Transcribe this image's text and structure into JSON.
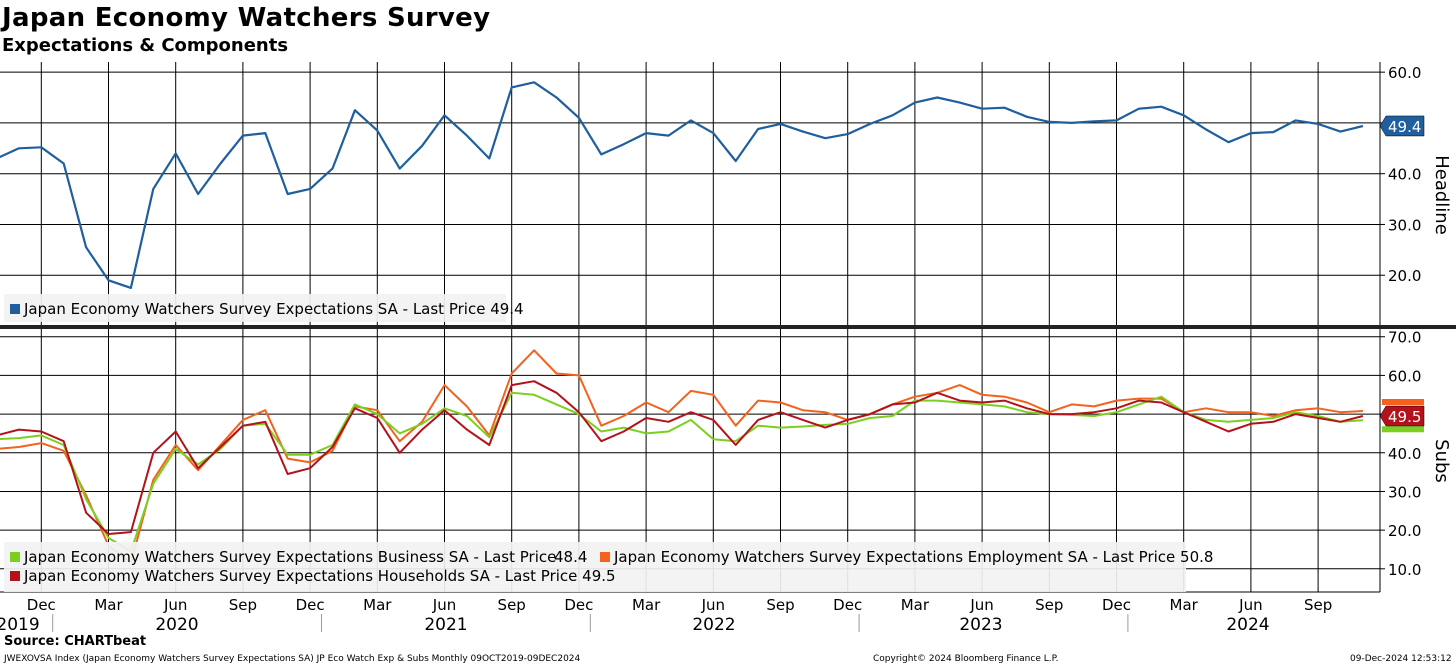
{
  "chart_data": [
    {
      "type": "line",
      "title": "Japan Economy Watchers Survey",
      "subtitle": "Expectations & Components",
      "panel_label": "Headline",
      "ylim": [
        10,
        62
      ],
      "yticks": [
        20,
        30,
        40,
        50,
        60
      ],
      "ytick_labels": [
        "20.0",
        "30.0",
        "40.0",
        "50.0",
        "60.0"
      ],
      "series": [
        {
          "name": "Japan Economy Watchers Survey Expectations SA - Last Price 49.4",
          "color": "#1f5f9e",
          "last_value_label": "49.4",
          "values": [
            43.0,
            45.0,
            45.2,
            42.0,
            25.5,
            19.0,
            17.5,
            37.0,
            44.0,
            36.0,
            42.0,
            47.5,
            48.0,
            36.0,
            37.0,
            41.0,
            52.5,
            48.5,
            41.0,
            45.5,
            51.5,
            47.5,
            43.0,
            57.0,
            58.0,
            55.0,
            51.0,
            43.8,
            45.8,
            48.0,
            47.5,
            50.5,
            48.0,
            42.5,
            48.8,
            49.8,
            48.3,
            47.0,
            47.8,
            49.8,
            51.5,
            54.0,
            55.0,
            54.0,
            52.8,
            53.0,
            51.2,
            50.2,
            50.0,
            50.3,
            50.5,
            52.8,
            53.2,
            51.5,
            48.7,
            46.2,
            48.0,
            48.2,
            50.5,
            49.8,
            48.3,
            49.4
          ]
        }
      ]
    },
    {
      "type": "line",
      "panel_label": "Subs",
      "ylim": [
        4,
        72
      ],
      "yticks": [
        10,
        20,
        30,
        40,
        50,
        60,
        70
      ],
      "ytick_labels": [
        "10.0",
        "20.0",
        "30.0",
        "40.0",
        "50.0",
        "60.0",
        "70.0"
      ],
      "series": [
        {
          "name": "Japan Economy Watchers Survey Expectations Business SA - Last Price",
          "last_price": "48.4",
          "color": "#7ccf1f",
          "values": [
            43.5,
            43.8,
            44.5,
            42.0,
            28.0,
            18.0,
            14.5,
            32.0,
            41.0,
            37.0,
            41.0,
            47.0,
            47.5,
            39.5,
            39.5,
            42.0,
            52.5,
            50.0,
            45.0,
            47.5,
            51.5,
            49.5,
            44.0,
            55.5,
            55.0,
            52.5,
            50.0,
            45.5,
            46.5,
            45.0,
            45.5,
            48.5,
            43.5,
            43.0,
            47.0,
            46.5,
            46.8,
            47.2,
            47.5,
            49.0,
            49.5,
            53.5,
            53.5,
            53.0,
            52.5,
            52.0,
            50.5,
            50.0,
            49.8,
            49.5,
            50.5,
            52.5,
            54.5,
            50.5,
            48.5,
            48.0,
            48.5,
            49.0,
            50.5,
            49.5,
            48.0,
            48.4
          ]
        },
        {
          "name": "Japan Economy Watchers Survey Expectations Employment SA - Last Price 50.8",
          "color": "#f4621d",
          "values": [
            41.0,
            41.5,
            42.5,
            40.5,
            29.0,
            16.0,
            11.5,
            33.0,
            42.0,
            35.5,
            42.0,
            48.5,
            51.0,
            38.5,
            37.5,
            40.5,
            52.0,
            51.0,
            43.0,
            48.0,
            57.5,
            52.0,
            44.5,
            60.5,
            66.5,
            60.5,
            60.0,
            47.0,
            49.5,
            53.0,
            50.5,
            56.0,
            55.0,
            47.0,
            53.5,
            53.0,
            51.0,
            50.5,
            48.5,
            50.0,
            52.5,
            54.5,
            55.5,
            57.5,
            55.0,
            54.5,
            53.0,
            50.5,
            52.5,
            52.0,
            53.5,
            54.0,
            54.0,
            50.5,
            51.5,
            50.5,
            50.5,
            49.5,
            51.0,
            51.5,
            50.5,
            50.8
          ]
        },
        {
          "name": "Japan Economy Watchers Survey Expectations Households SA - Last Price 49.5",
          "color": "#b3121c",
          "last_value_label": "49.5",
          "values": [
            44.5,
            46.0,
            45.5,
            43.0,
            24.5,
            19.0,
            19.5,
            40.0,
            45.5,
            36.0,
            41.5,
            47.0,
            48.0,
            34.5,
            36.0,
            41.5,
            51.5,
            49.0,
            40.0,
            46.0,
            51.0,
            46.0,
            42.0,
            57.5,
            58.5,
            55.5,
            50.5,
            43.0,
            45.5,
            49.0,
            48.0,
            50.5,
            48.5,
            42.0,
            48.5,
            50.5,
            48.5,
            46.5,
            48.5,
            50.0,
            52.5,
            53.0,
            55.5,
            53.5,
            53.0,
            53.5,
            51.5,
            50.0,
            50.0,
            50.5,
            51.5,
            53.5,
            53.0,
            50.5,
            48.0,
            45.5,
            47.5,
            48.0,
            50.0,
            49.0,
            48.0,
            49.5
          ]
        }
      ],
      "legend_last_price_business": "48.4"
    }
  ],
  "x_axis": {
    "months": [
      "Dec",
      "Mar",
      "Jun",
      "Sep",
      "Dec",
      "Mar",
      "Jun",
      "Sep",
      "Dec",
      "Mar",
      "Jun",
      "Sep",
      "Dec",
      "Mar",
      "Jun",
      "Sep",
      "Dec",
      "Mar",
      "Jun",
      "Sep"
    ],
    "years": [
      "2019",
      "2020",
      "2021",
      "2022",
      "2023",
      "2024"
    ]
  },
  "footer": {
    "source": "Source: CHARTbeat",
    "index_info": "JWEXOVSA Index (Japan Economy Watchers Survey Expectations SA) JP Eco Watch Exp & Subs  Monthly 09OCT2019-09DEC2024",
    "copyright": "Copyright© 2024 Bloomberg Finance L.P.",
    "timestamp": "09-Dec-2024 12:53:12"
  }
}
